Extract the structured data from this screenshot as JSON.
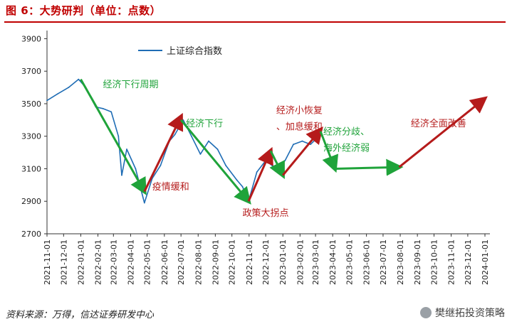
{
  "header": {
    "title": "图 6：大势研判（单位：点数）"
  },
  "footer": {
    "source": "资料来源：万得，信达证券研发中心",
    "brand": "樊继拓投资策略"
  },
  "colors": {
    "line": "#1f6db5",
    "green": "#1fa33a",
    "red": "#b51b1b",
    "title": "#c00000"
  },
  "chart_data": {
    "type": "line",
    "series": [
      {
        "name": "上证综合指数",
        "x": [
          "2021-11-01",
          "2021-11-20",
          "2021-12-10",
          "2021-12-28",
          "2022-01-10",
          "2022-01-28",
          "2022-02-10",
          "2022-02-25",
          "2022-03-10",
          "2022-03-16",
          "2022-03-25",
          "2022-04-10",
          "2022-04-26",
          "2022-05-10",
          "2022-05-25",
          "2022-06-10",
          "2022-06-20",
          "2022-07-05",
          "2022-07-20",
          "2022-08-05",
          "2022-08-20",
          "2022-09-05",
          "2022-09-20",
          "2022-10-10",
          "2022-10-20",
          "2022-10-31",
          "2022-11-15",
          "2022-12-01",
          "2022-12-20",
          "2023-01-05",
          "2023-01-20",
          "2023-02-05",
          "2023-02-20",
          "2023-03-01"
        ],
        "values": [
          3520,
          3560,
          3600,
          3650,
          3600,
          3480,
          3470,
          3450,
          3300,
          3060,
          3220,
          3100,
          2890,
          3040,
          3120,
          3270,
          3310,
          3400,
          3300,
          3190,
          3270,
          3220,
          3120,
          3030,
          2990,
          2900,
          3080,
          3150,
          3100,
          3150,
          3250,
          3270,
          3250,
          3280
        ]
      }
    ],
    "x_ticks": [
      "2021-11-01",
      "2021-12-01",
      "2022-01-01",
      "2022-02-01",
      "2022-03-01",
      "2022-04-01",
      "2022-05-01",
      "2022-06-01",
      "2022-07-01",
      "2022-08-01",
      "2022-09-01",
      "2022-10-01",
      "2022-11-01",
      "2022-12-01",
      "2023-01-01",
      "2023-02-01",
      "2023-03-01",
      "2023-04-01",
      "2023-05-01",
      "2023-06-01",
      "2023-07-01",
      "2023-08-01",
      "2023-09-01",
      "2023-10-01",
      "2023-11-01",
      "2023-12-01",
      "2024-01-01"
    ],
    "y_ticks": [
      2700,
      2900,
      3100,
      3300,
      3500,
      3700,
      3900
    ],
    "ylim": [
      2700,
      3950
    ],
    "xlim": [
      "2021-11-01",
      "2024-01-10"
    ],
    "legend": "top-left",
    "annotations": [
      {
        "text": "经济下行周期",
        "color": "green",
        "x": "2022-02-10",
        "y": 3600
      },
      {
        "text": "疫情缓和",
        "color": "red",
        "x": "2022-05-10",
        "y": 2970
      },
      {
        "text": "经济下行",
        "color": "green",
        "x": "2022-07-10",
        "y": 3360
      },
      {
        "text": "经济小恢复",
        "color": "red",
        "x": "2022-12-20",
        "y": 3440
      },
      {
        "text": "、加息缓和",
        "color": "red",
        "x": "2022-12-20",
        "y": 3340
      },
      {
        "text": "政策大拐点",
        "color": "red",
        "x": "2022-10-20",
        "y": 2810
      },
      {
        "text": "经济分歧、",
        "color": "green",
        "x": "2023-03-15",
        "y": 3310
      },
      {
        "text": "海外经济弱",
        "color": "green",
        "x": "2023-03-15",
        "y": 3210
      },
      {
        "text": "经济全面改善",
        "color": "red",
        "x": "2023-08-20",
        "y": 3360
      }
    ],
    "trend_arrows": [
      {
        "color": "green",
        "from": {
          "x": "2022-01-01",
          "y": 3650
        },
        "to": {
          "x": "2022-04-26",
          "y": 2960
        }
      },
      {
        "color": "red",
        "from": {
          "x": "2022-04-26",
          "y": 2960
        },
        "to": {
          "x": "2022-07-01",
          "y": 3420
        }
      },
      {
        "color": "green",
        "from": {
          "x": "2022-07-01",
          "y": 3400
        },
        "to": {
          "x": "2022-10-31",
          "y": 2900
        }
      },
      {
        "color": "red",
        "from": {
          "x": "2022-10-31",
          "y": 2900
        },
        "to": {
          "x": "2022-12-10",
          "y": 3210
        }
      },
      {
        "color": "green",
        "from": {
          "x": "2022-12-10",
          "y": 3210
        },
        "to": {
          "x": "2023-01-01",
          "y": 3060
        }
      },
      {
        "color": "red",
        "from": {
          "x": "2023-01-01",
          "y": 3060
        },
        "to": {
          "x": "2023-03-10",
          "y": 3340
        }
      },
      {
        "color": "green",
        "from": {
          "x": "2023-03-10",
          "y": 3330
        },
        "to": {
          "x": "2023-04-05",
          "y": 3100
        }
      },
      {
        "color": "green",
        "from": {
          "x": "2023-04-05",
          "y": 3100
        },
        "to": {
          "x": "2023-07-30",
          "y": 3110
        }
      },
      {
        "color": "red",
        "from": {
          "x": "2023-07-30",
          "y": 3110
        },
        "to": {
          "x": "2023-12-31",
          "y": 3530
        }
      }
    ]
  }
}
